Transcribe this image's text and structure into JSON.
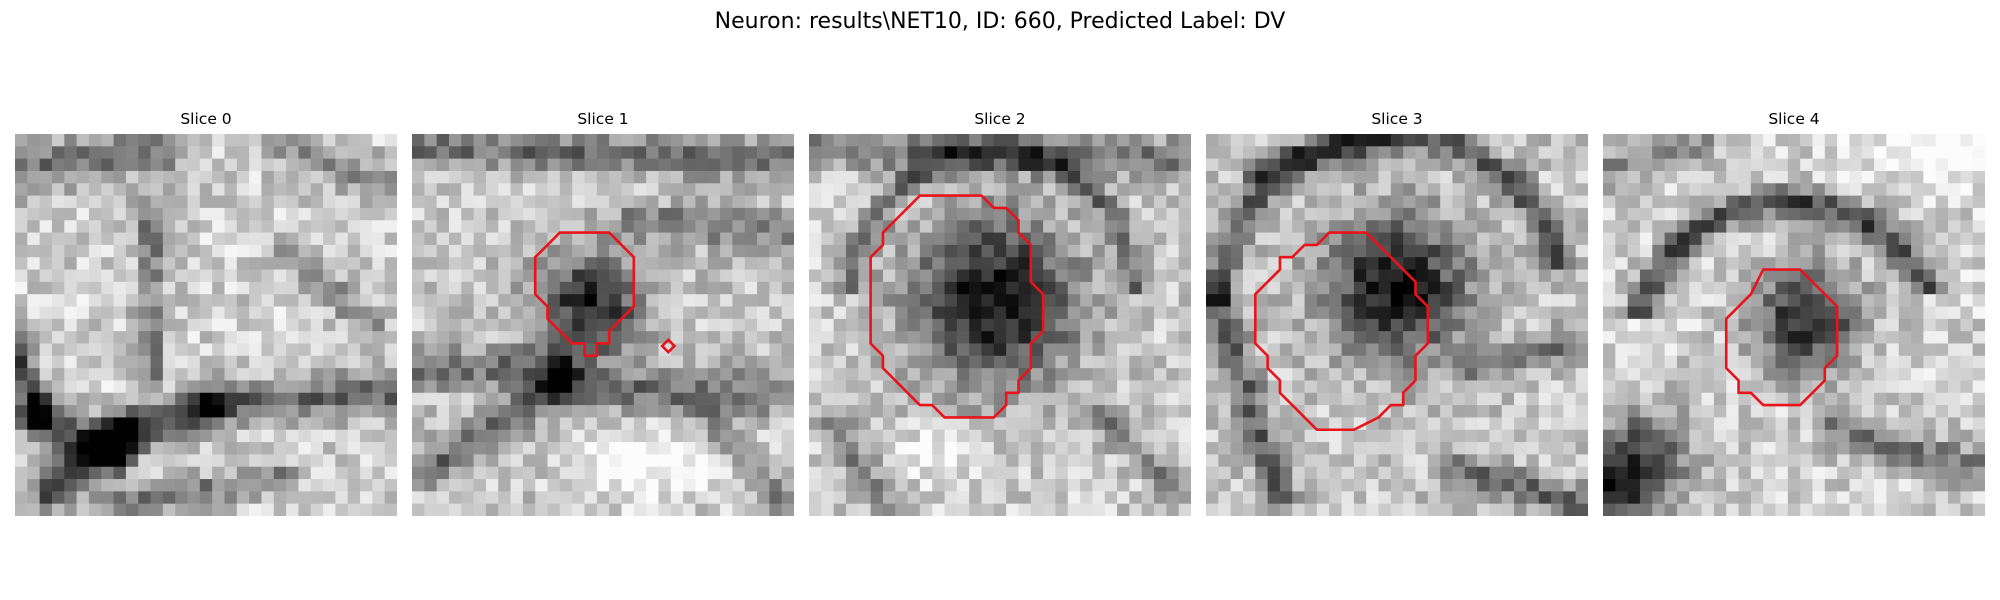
{
  "figure": {
    "title": "Neuron: results\\NET10, ID: 660, Predicted Label: DV",
    "contour_color": "#e8141a",
    "colormap": "gray",
    "slices": [
      {
        "title": "Slice 0",
        "has_contour": false
      },
      {
        "title": "Slice 1",
        "has_contour": true
      },
      {
        "title": "Slice 2",
        "has_contour": true
      },
      {
        "title": "Slice 3",
        "has_contour": true
      },
      {
        "title": "Slice 4",
        "has_contour": true
      }
    ]
  }
}
